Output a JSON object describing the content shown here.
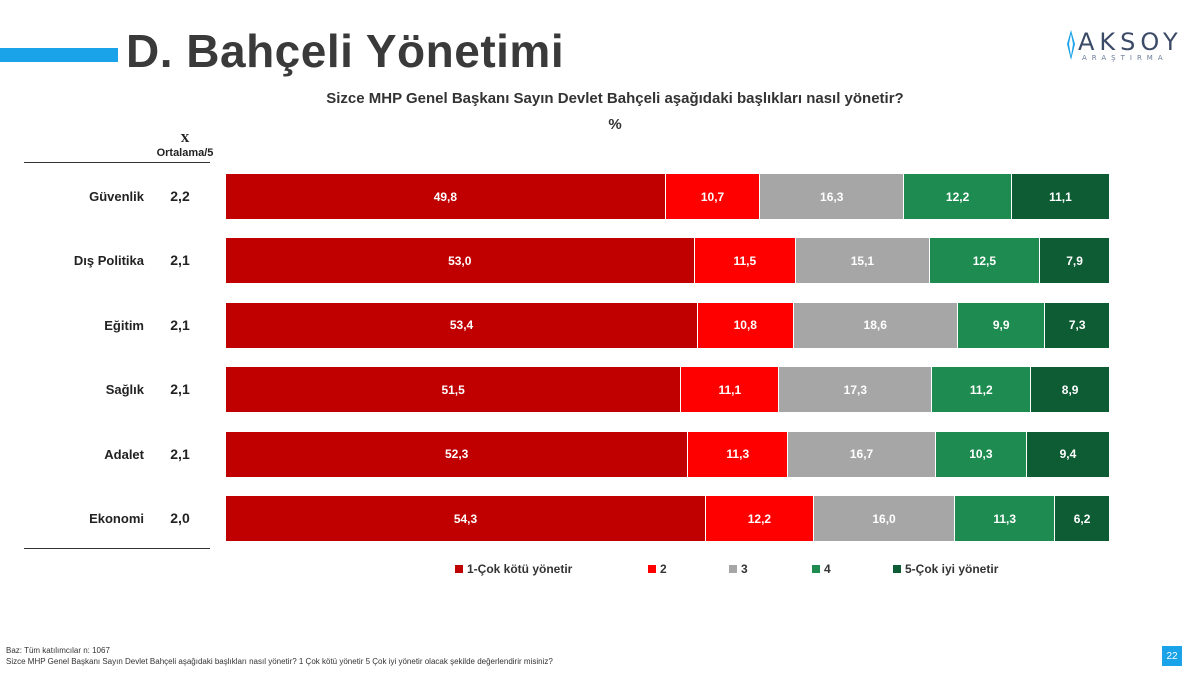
{
  "page": {
    "title": "D. Bahçeli Yönetimi",
    "logo_main": "AKSOY",
    "logo_sub": "ARAŞTIRMA",
    "page_number": "22"
  },
  "chart_data": {
    "type": "bar",
    "orientation": "horizontal",
    "stacked": true,
    "title": "Sizce MHP Genel Başkanı Sayın Devlet Bahçeli aşağıdaki başlıkları nasıl yönetir?",
    "subtitle": "%",
    "average_header_symbol": "X",
    "average_header_label": "Ortalama/5",
    "categories": [
      "Güvenlik",
      "Dış Politika",
      "Eğitim",
      "Sağlık",
      "Adalet",
      "Ekonomi"
    ],
    "averages": [
      "2,2",
      "2,1",
      "2,1",
      "2,1",
      "2,1",
      "2,0"
    ],
    "series": [
      {
        "name": "1-Çok kötü yönetir",
        "color": "#c00000",
        "values": [
          49.8,
          53.0,
          53.4,
          51.5,
          52.3,
          54.3
        ]
      },
      {
        "name": "2",
        "color": "#ff0000",
        "values": [
          10.7,
          11.5,
          10.8,
          11.1,
          11.3,
          12.2
        ]
      },
      {
        "name": "3",
        "color": "#a6a6a6",
        "values": [
          16.3,
          15.1,
          18.6,
          17.3,
          16.7,
          16.0
        ]
      },
      {
        "name": "4",
        "color": "#1e8c50",
        "values": [
          12.2,
          12.5,
          9.9,
          11.2,
          10.3,
          11.3
        ]
      },
      {
        "name": "5-Çok iyi yönetir",
        "color": "#0d5c34",
        "values": [
          11.1,
          7.9,
          7.3,
          8.9,
          9.4,
          6.2
        ]
      }
    ],
    "legend_position": "bottom",
    "decimal_separator": ","
  },
  "footer": {
    "base": "Baz: Tüm katılımcılar n: 1067",
    "note": "Sizce MHP Genel Başkanı Sayın Devlet Bahçeli aşağıdaki başlıkları nasıl yönetir? 1 Çok kötü yönetir 5 Çok iyi yönetir olacak şekilde değerlendirir misiniz?"
  },
  "colors": {
    "accent": "#1aa3e8",
    "logo": "#3b4a66"
  }
}
